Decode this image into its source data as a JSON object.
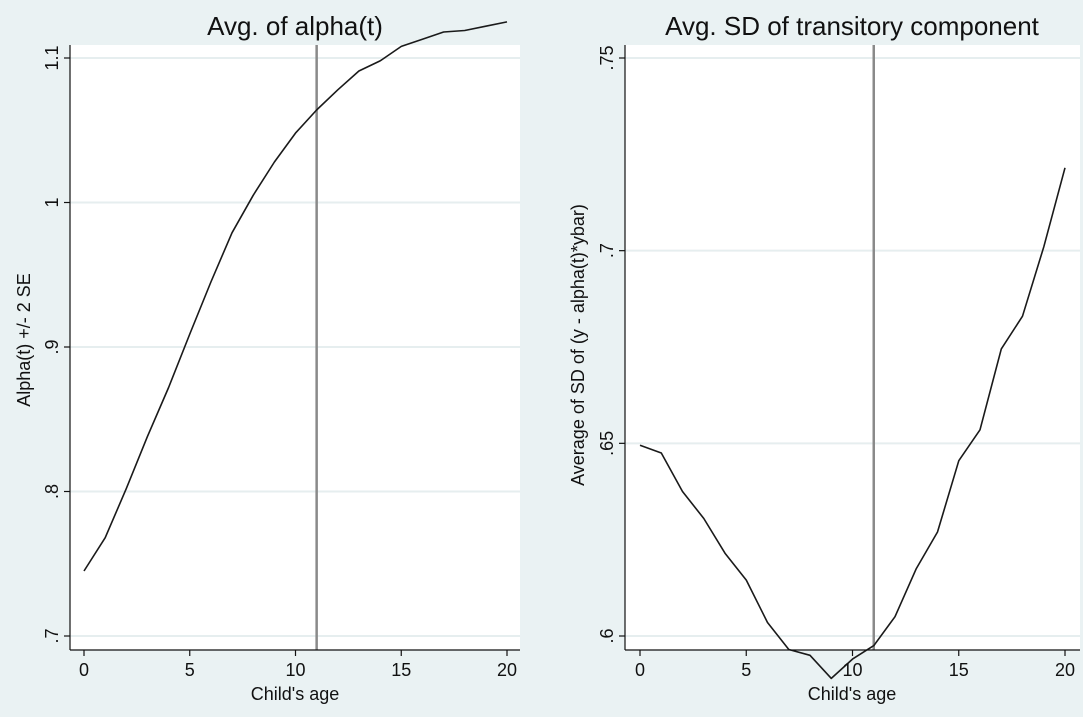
{
  "chart_data": [
    {
      "type": "line",
      "title": "Avg. of alpha(t)",
      "xlabel": "Child's age",
      "ylabel": "Alpha(t) +/- 2 SE",
      "xlim": [
        0,
        20
      ],
      "ylim": [
        0.7,
        1.13
      ],
      "xticks": [
        0,
        5,
        10,
        15,
        20
      ],
      "xtick_labels": [
        "0",
        "5",
        "10",
        "15",
        "20"
      ],
      "yticks": [
        0.7,
        0.8,
        0.9,
        1.0,
        1.1
      ],
      "ytick_labels": [
        ".7",
        ".8",
        ".9",
        "1",
        "1.1"
      ],
      "grid": true,
      "vline": 11,
      "x": [
        0,
        1,
        2,
        3,
        4,
        5,
        6,
        7,
        8,
        9,
        10,
        11,
        12,
        13,
        14,
        15,
        16,
        17,
        18,
        19,
        20
      ],
      "series": [
        {
          "values": [
            0.745,
            0.768,
            0.802,
            0.838,
            0.872,
            0.909,
            0.945,
            0.979,
            1.005,
            1.028,
            1.048,
            1.064,
            1.078,
            1.091,
            1.098,
            1.108,
            1.113,
            1.118,
            1.119,
            1.122,
            1.125
          ]
        }
      ],
      "colors": {
        "line": "#1a1a1a",
        "vline": "#8a8a8a",
        "grid": "#ffffff"
      }
    },
    {
      "type": "line",
      "title": "Avg. SD of transitory component",
      "xlabel": "Child's age",
      "ylabel": "Average of SD of (y - alpha(t)*ybar)",
      "xlim": [
        0,
        20
      ],
      "ylim": [
        0.585,
        0.75
      ],
      "xticks": [
        0,
        5,
        10,
        15,
        20
      ],
      "xtick_labels": [
        "0",
        "5",
        "10",
        "15",
        "20"
      ],
      "yticks": [
        0.6,
        0.65,
        0.7,
        0.75
      ],
      "ytick_labels": [
        ".6",
        ".65",
        ".7",
        ".75"
      ],
      "grid": true,
      "vline": 11,
      "x": [
        0,
        1,
        2,
        3,
        4,
        5,
        6,
        7,
        8,
        9,
        10,
        11,
        12,
        13,
        14,
        15,
        16,
        17,
        18,
        19,
        20
      ],
      "series": [
        {
          "values": [
            0.6495,
            0.6475,
            0.6375,
            0.6305,
            0.6215,
            0.6145,
            0.6035,
            0.5965,
            0.595,
            0.589,
            0.594,
            0.5975,
            0.605,
            0.6175,
            0.627,
            0.6455,
            0.6535,
            0.6745,
            0.683,
            0.701,
            0.7215
          ]
        }
      ],
      "colors": {
        "line": "#1a1a1a",
        "vline": "#8a8a8a",
        "grid": "#ffffff"
      }
    }
  ]
}
